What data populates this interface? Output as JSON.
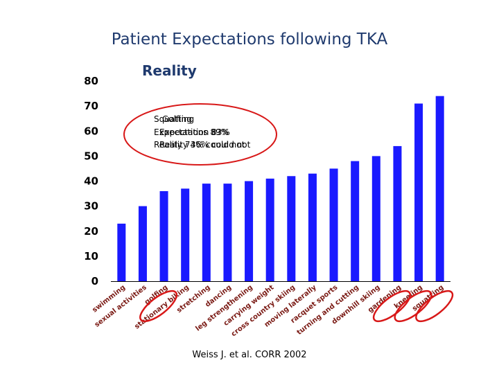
{
  "slide": {
    "title": "Patient Expectations following TKA",
    "citation": "Weiss J. et al. CORR 2002"
  },
  "chart_data": {
    "type": "bar",
    "title": "Reality",
    "xlabel": "",
    "ylabel": "",
    "ylim": [
      0,
      80
    ],
    "yticks": [
      0,
      10,
      20,
      30,
      40,
      50,
      60,
      70,
      80
    ],
    "grid": false,
    "bar_color": "#1a1aff",
    "categories": [
      "swimming",
      "sexual activities",
      "golfing",
      "stationary biking",
      "stretching",
      "dancing",
      "leg strengthening",
      "carrying weight",
      "cross country skiing",
      "moving laterally",
      "racquet sports",
      "turning and cutting",
      "downhill skiing",
      "gardening",
      "kneeling",
      "squatting"
    ],
    "values": [
      23,
      30,
      36,
      37,
      39,
      39,
      40,
      41,
      42,
      43,
      45,
      48,
      50,
      54,
      71,
      74
    ],
    "circled_categories": [
      "golfing",
      "gardening",
      "kneeling",
      "squatting"
    ],
    "circle_color": "#d81818",
    "annotation_lines": [
      "Squatting",
      "Golfing",
      "Expectations 89%",
      "Expectation 83%",
      "Reality 74% could not",
      "Reality 36% could not"
    ]
  }
}
